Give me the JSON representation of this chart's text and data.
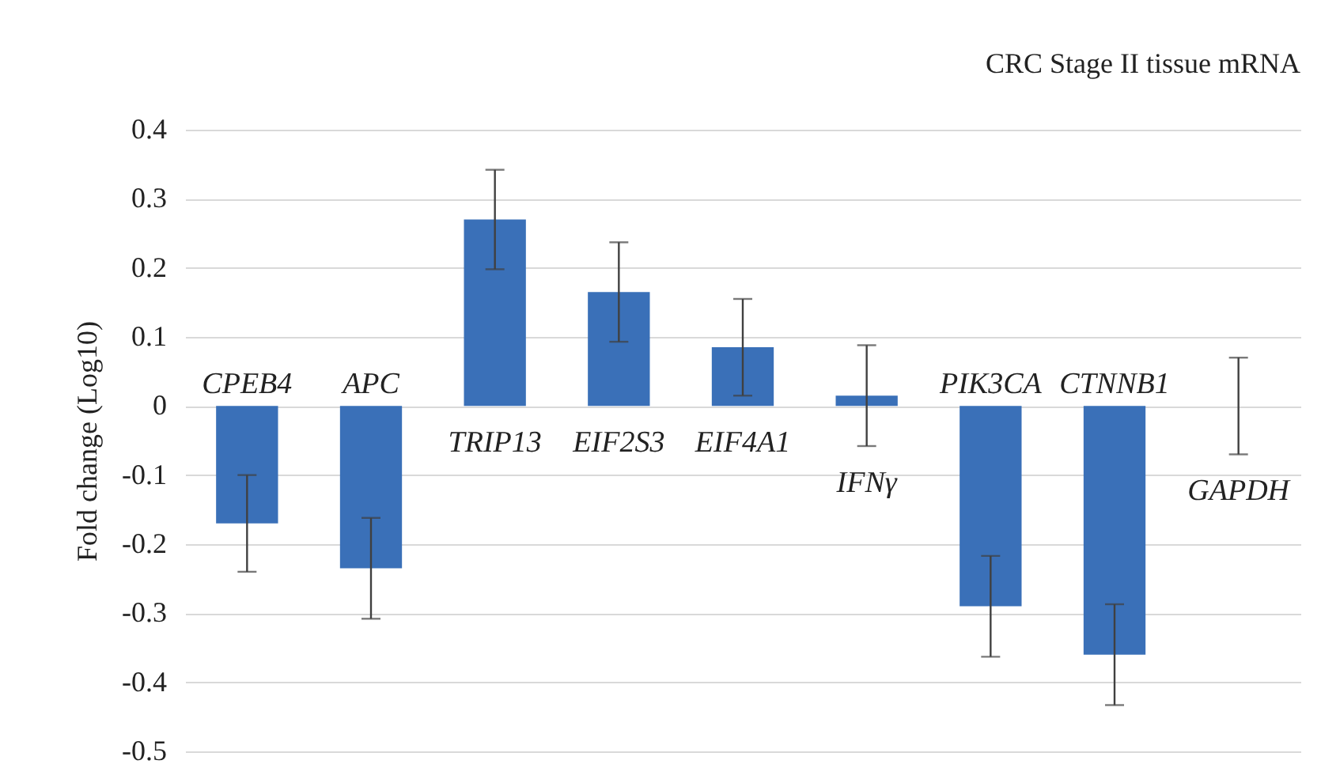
{
  "chart_data": {
    "type": "bar",
    "title": "CRC Stage II tissue mRNA",
    "ylabel": "Fold change (Log10)",
    "categories": [
      "CPEB4",
      "APC",
      "TRIP13",
      "EIF2S3",
      "EIF4A1",
      "IFNγ",
      "PIK3CA",
      "CTNNB1",
      "GAPDH"
    ],
    "values": [
      -0.17,
      -0.235,
      0.27,
      0.165,
      0.085,
      0.015,
      -0.29,
      -0.36,
      0
    ],
    "errors": [
      0.07,
      0.073,
      0.072,
      0.072,
      0.07,
      0.073,
      0.073,
      0.073,
      0.07
    ],
    "color": "#3a70b8",
    "ylim": [
      -0.5,
      0.4
    ],
    "yticks": [
      -0.5,
      -0.4,
      -0.3,
      -0.2,
      -0.1,
      0,
      0.1,
      0.2,
      0.3,
      0.4
    ],
    "grid": "y"
  }
}
